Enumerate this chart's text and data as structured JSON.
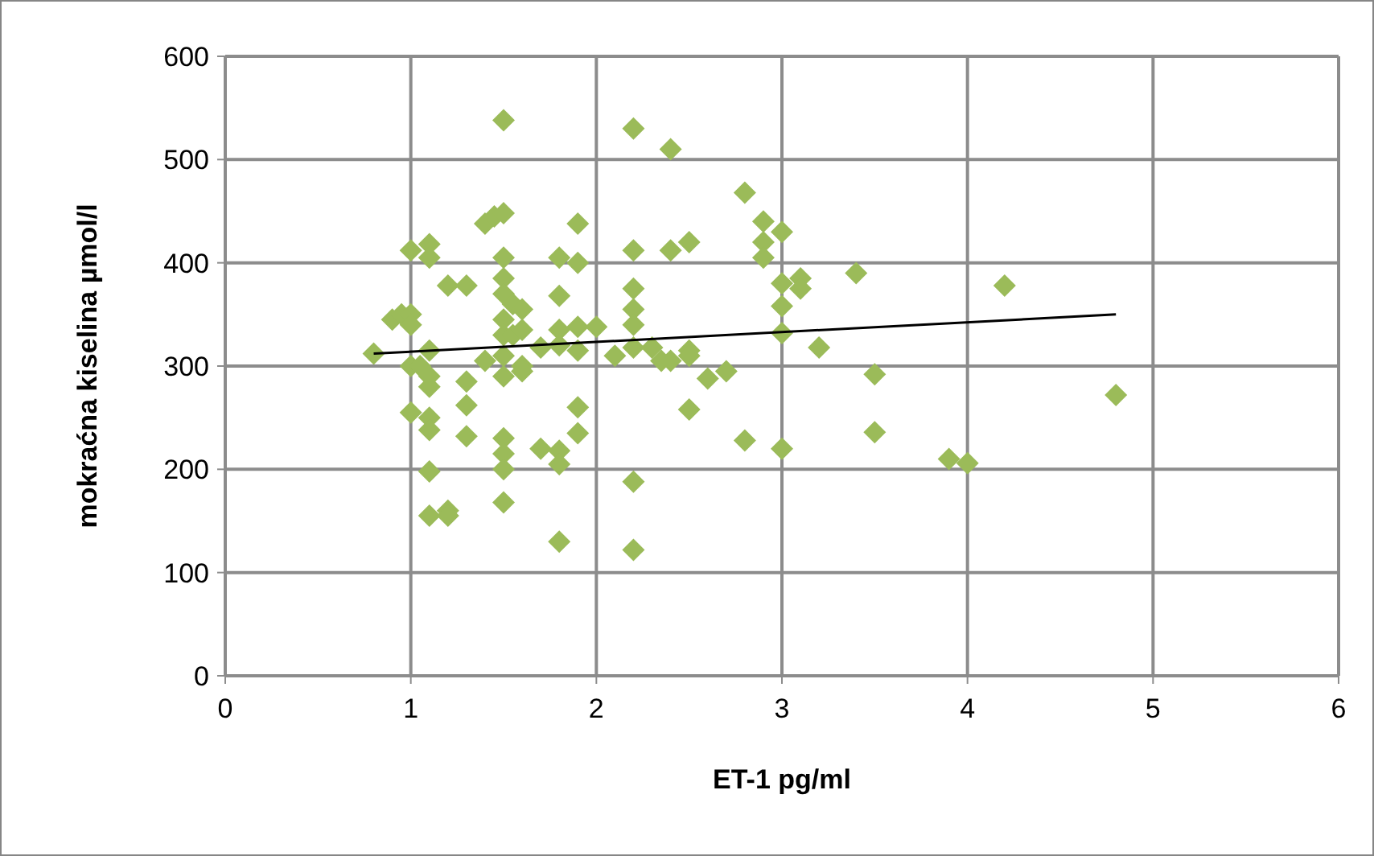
{
  "chart_data": {
    "type": "scatter",
    "xlabel": "ET-1 pg/ml",
    "ylabel": "mokraćna kiselina µmol/l",
    "xlim": [
      0,
      6
    ],
    "xticks": [
      0,
      1,
      2,
      3,
      4,
      5,
      6
    ],
    "ylim": [
      0,
      600
    ],
    "yticks": [
      0,
      100,
      200,
      300,
      400,
      500,
      600
    ],
    "grid": true,
    "marker": "diamond",
    "series": [
      {
        "color": "#9bbb59",
        "x": [
          0.8,
          0.9,
          0.95,
          1.0,
          1.0,
          1.0,
          1.0,
          1.0,
          1.05,
          1.1,
          1.1,
          1.1,
          1.1,
          1.1,
          1.1,
          1.1,
          1.1,
          1.1,
          1.2,
          1.2,
          1.2,
          1.3,
          1.3,
          1.3,
          1.3,
          1.4,
          1.4,
          1.45,
          1.5,
          1.5,
          1.5,
          1.5,
          1.5,
          1.5,
          1.5,
          1.5,
          1.5,
          1.5,
          1.5,
          1.5,
          1.5,
          1.55,
          1.55,
          1.6,
          1.6,
          1.6,
          1.6,
          1.7,
          1.7,
          1.8,
          1.8,
          1.8,
          1.8,
          1.8,
          1.8,
          1.8,
          1.9,
          1.9,
          1.9,
          1.9,
          1.9,
          1.9,
          2.0,
          2.1,
          2.2,
          2.2,
          2.2,
          2.2,
          2.2,
          2.2,
          2.2,
          2.2,
          2.3,
          2.35,
          2.4,
          2.4,
          2.4,
          2.5,
          2.5,
          2.5,
          2.5,
          2.6,
          2.7,
          2.8,
          2.8,
          2.9,
          2.9,
          2.9,
          3.0,
          3.0,
          3.0,
          3.0,
          3.0,
          3.1,
          3.1,
          3.2,
          3.4,
          3.5,
          3.5,
          3.9,
          4.0,
          4.2,
          4.8
        ],
        "values": [
          312,
          345,
          350,
          412,
          350,
          340,
          300,
          255,
          300,
          418,
          405,
          315,
          290,
          280,
          250,
          238,
          198,
          155,
          160,
          155,
          378,
          378,
          285,
          262,
          232,
          438,
          305,
          445,
          538,
          448,
          405,
          385,
          370,
          345,
          330,
          310,
          290,
          230,
          215,
          200,
          168,
          360,
          330,
          355,
          335,
          300,
          295,
          318,
          220,
          405,
          368,
          335,
          320,
          218,
          205,
          130,
          438,
          400,
          338,
          315,
          260,
          235,
          338,
          310,
          530,
          412,
          375,
          355,
          340,
          318,
          188,
          122,
          318,
          305,
          510,
          412,
          305,
          420,
          315,
          310,
          258,
          288,
          295,
          468,
          228,
          440,
          420,
          405,
          430,
          380,
          358,
          332,
          220,
          385,
          375,
          318,
          390,
          292,
          236,
          210,
          206,
          378,
          272
        ]
      },
      {
        "type": "line",
        "color": "#000000",
        "marker": "none",
        "x": [
          0.8,
          4.8
        ],
        "values": [
          312,
          350
        ]
      }
    ]
  }
}
